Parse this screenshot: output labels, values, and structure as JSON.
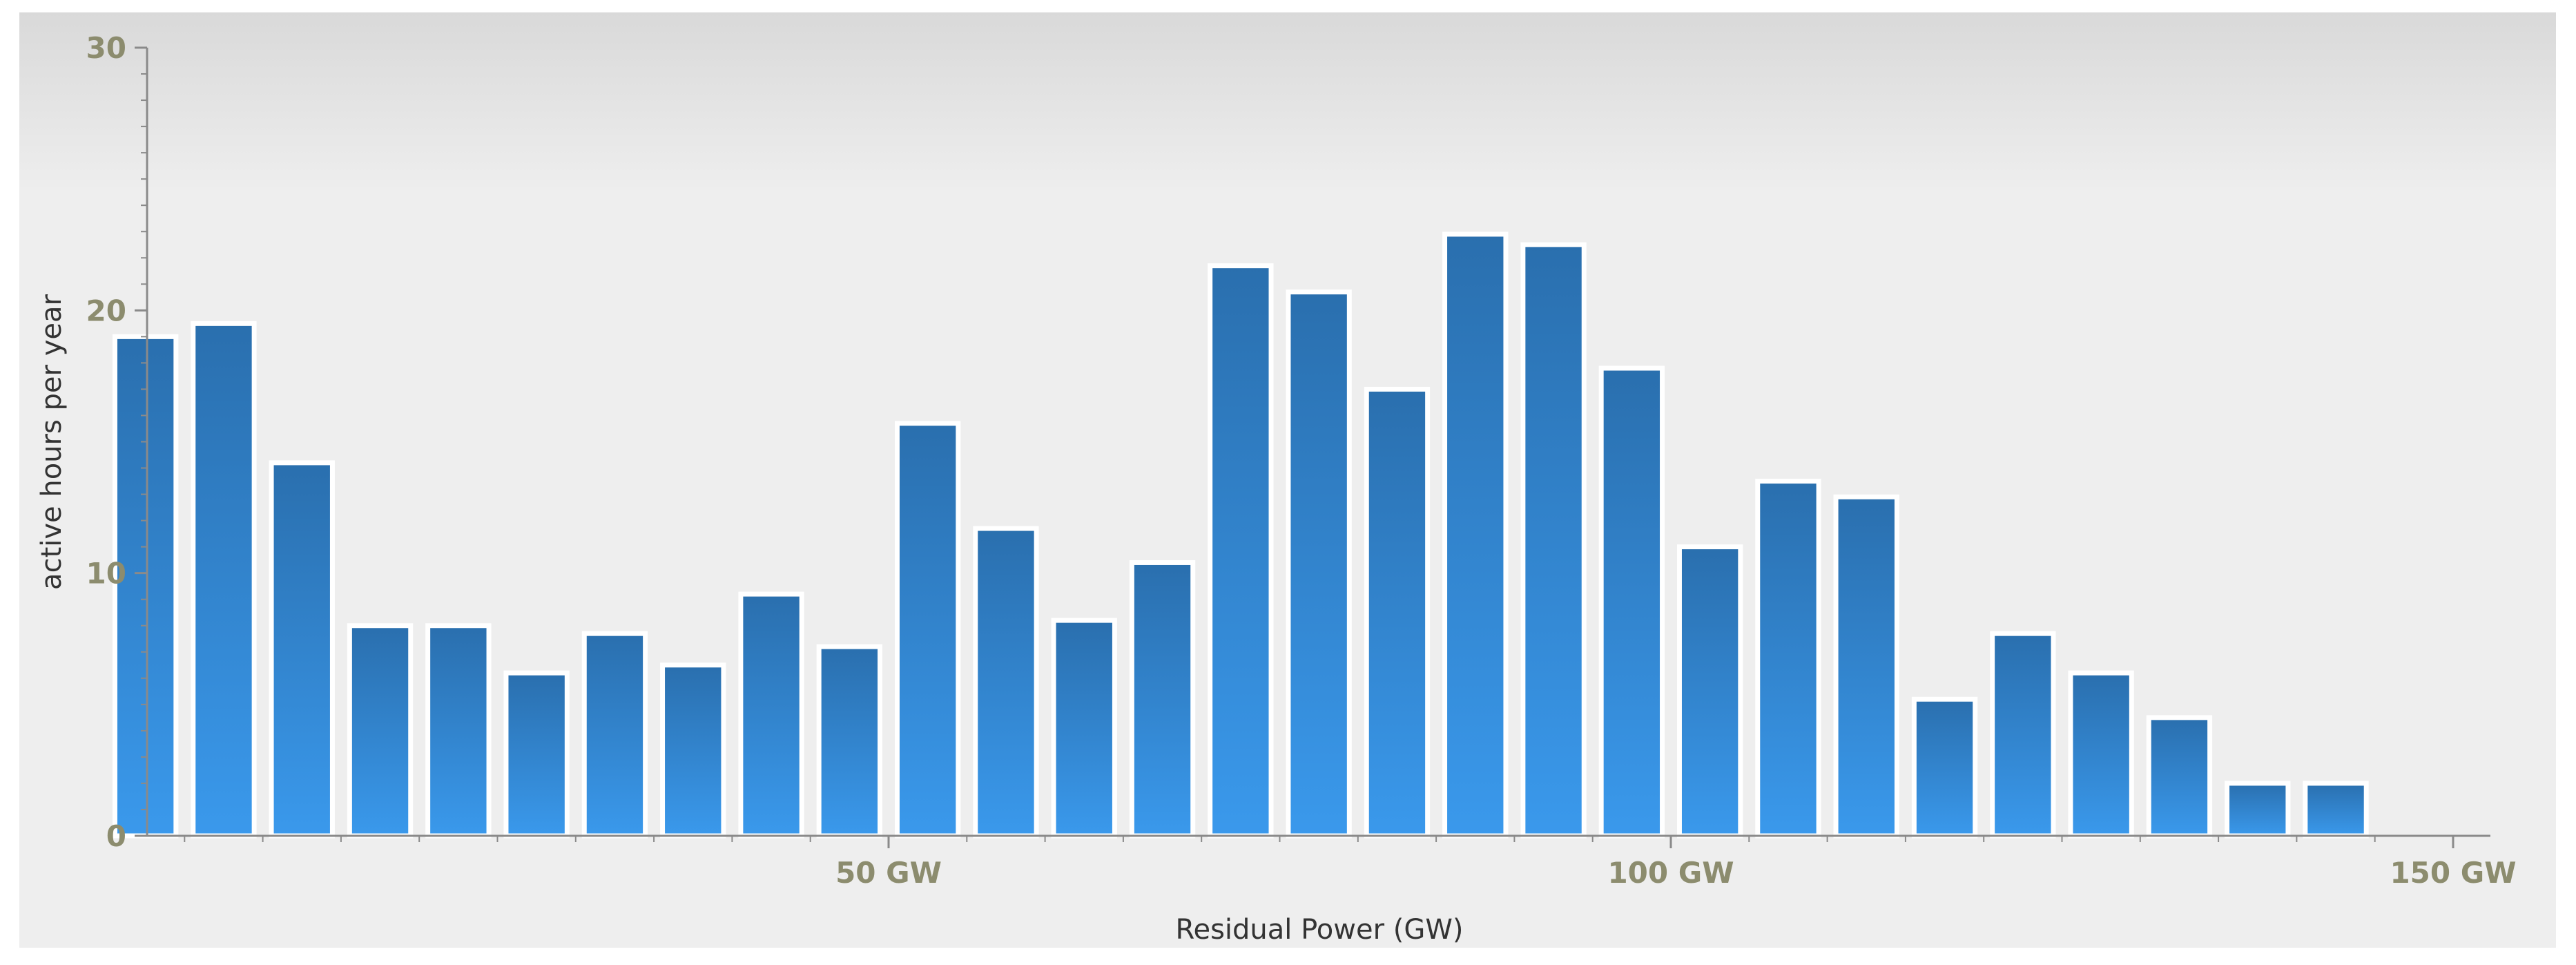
{
  "chart_data": {
    "type": "bar",
    "xlabel": "Residual Power (GW)",
    "ylabel": "active hours per year",
    "ylim": [
      0,
      30
    ],
    "xlim": [
      0,
      150
    ],
    "y_ticks": [
      0,
      10,
      20,
      30
    ],
    "y_tick_labels": [
      "0",
      "10",
      "20",
      "30"
    ],
    "x_ticks": [
      50,
      100,
      150
    ],
    "x_tick_labels": [
      "50 GW",
      "100 GW",
      "150 GW"
    ],
    "bin_width": 5,
    "x": [
      2.5,
      7.5,
      12.5,
      17.5,
      22.5,
      27.5,
      32.5,
      37.5,
      42.5,
      47.5,
      52.5,
      57.5,
      62.5,
      67.5,
      72.5,
      77.5,
      82.5,
      87.5,
      92.5,
      97.5,
      102.5,
      107.5,
      112.5,
      117.5,
      122.5,
      127.5,
      132.5,
      137.5,
      142.5,
      147.5
    ],
    "values": [
      19,
      19.5,
      14.2,
      8,
      8,
      6.2,
      7.7,
      6.5,
      9.2,
      7.2,
      15.7,
      11.7,
      8.2,
      10.4,
      21.7,
      20.7,
      17,
      22.9,
      22.5,
      17.8,
      11,
      13.5,
      12.9,
      5.2,
      7.7,
      6.2,
      4.5,
      2,
      2,
      0
    ],
    "grid": false,
    "legend": "none",
    "colors": {
      "bar_top": "#2a6fae",
      "bar_bottom": "#3a99ec",
      "bar_stroke": "#ffffff",
      "axis": "#8a8a8a",
      "tick_label": "#8c8c6e"
    }
  }
}
